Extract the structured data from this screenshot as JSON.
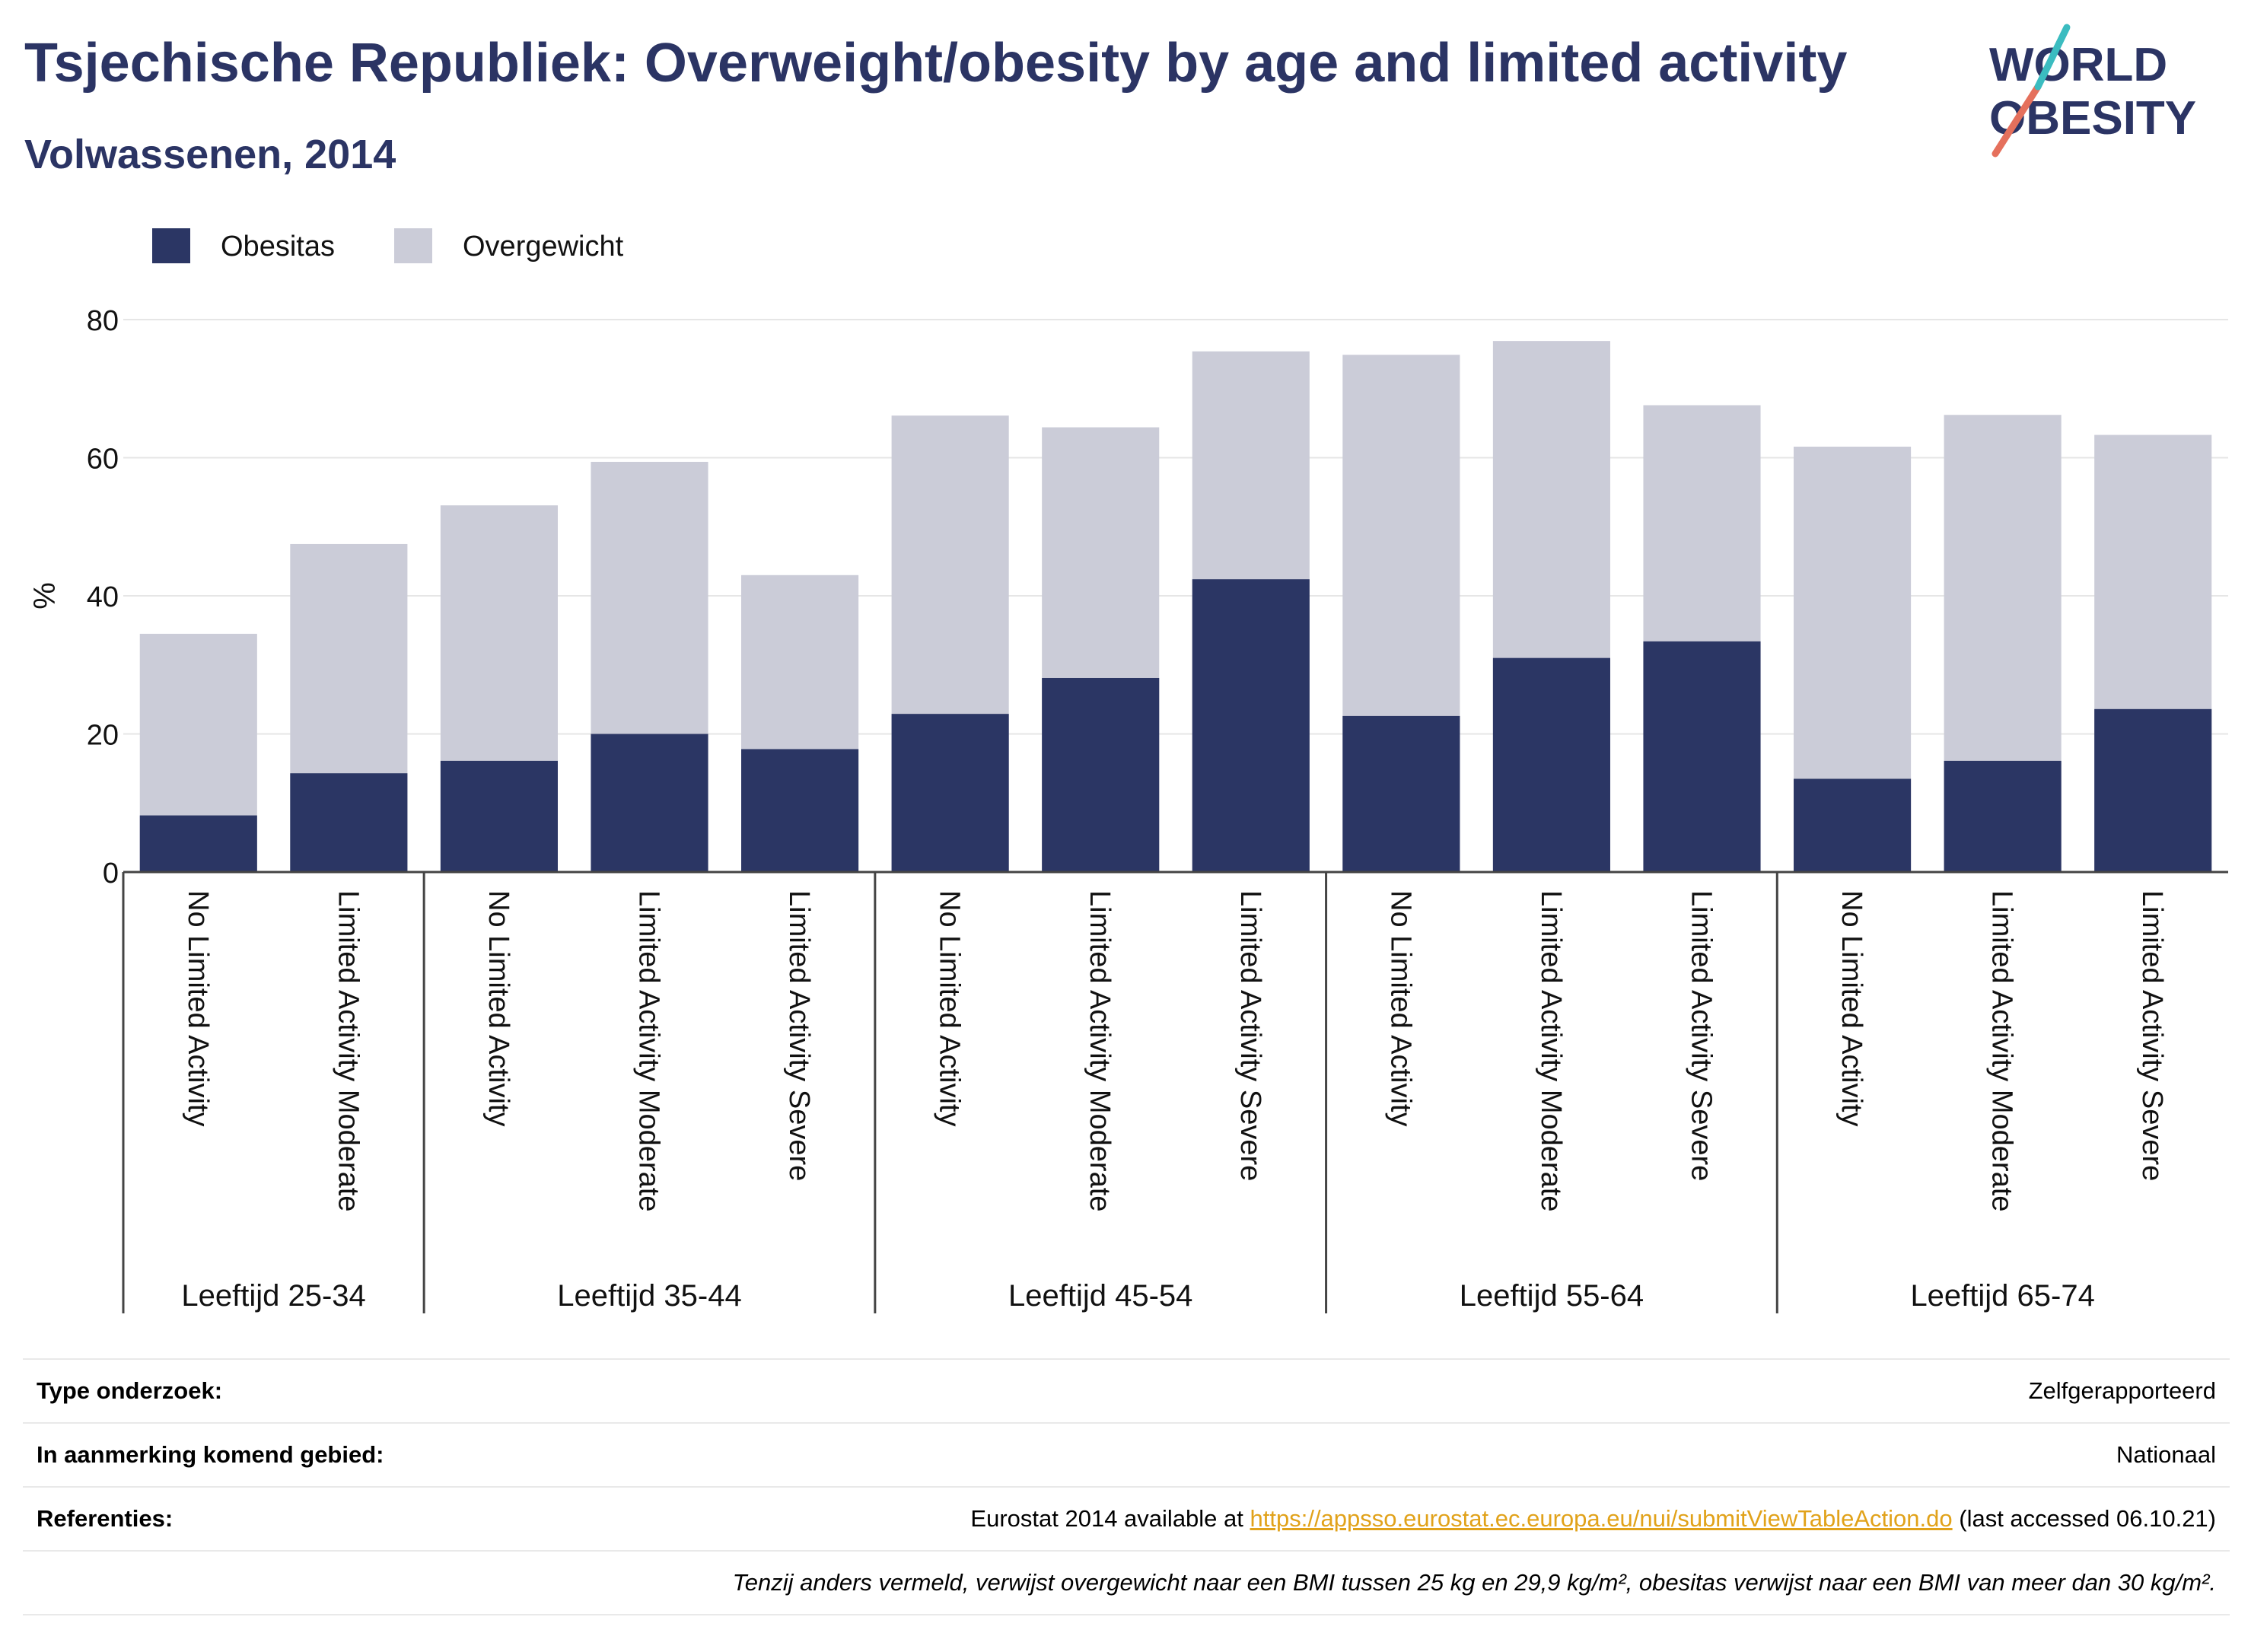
{
  "title": "Tsjechische Republiek: Overweight/obesity by age and limited activity",
  "subtitle": "Volwassenen, 2014",
  "logo": {
    "line1": "WORLD",
    "line2": "OBESITY"
  },
  "colors": {
    "obesitas": "#2b3664",
    "overgewicht": "#cbccd8",
    "title": "#2b3464"
  },
  "chart_data": {
    "type": "bar",
    "stacked": "overlay",
    "ylabel": "%",
    "ylim": [
      0,
      80
    ],
    "yticks": [
      0,
      20,
      40,
      60,
      80
    ],
    "grid": true,
    "legend_position": "top-left",
    "groups": [
      {
        "label": "Leeftijd 25-34",
        "categories": [
          "No Limited Activity",
          "Limited Activity Moderate"
        ]
      },
      {
        "label": "Leeftijd 35-44",
        "categories": [
          "No Limited Activity",
          "Limited Activity Moderate",
          "Limited Activity Severe"
        ]
      },
      {
        "label": "Leeftijd 45-54",
        "categories": [
          "No Limited Activity",
          "Limited Activity Moderate",
          "Limited Activity Severe"
        ]
      },
      {
        "label": "Leeftijd 55-64",
        "categories": [
          "No Limited Activity",
          "Limited Activity Moderate",
          "Limited Activity Severe"
        ]
      },
      {
        "label": "Leeftijd 65-74",
        "categories": [
          "No Limited Activity",
          "Limited Activity Moderate",
          "Limited Activity Severe"
        ]
      }
    ],
    "series": [
      {
        "name": "Obesitas",
        "values": [
          8.2,
          14.3,
          16.1,
          20.0,
          17.8,
          22.9,
          28.1,
          42.4,
          22.6,
          31.0,
          33.4,
          13.5,
          16.1,
          23.6
        ]
      },
      {
        "name": "Overgewicht",
        "values": [
          34.5,
          47.5,
          53.1,
          59.4,
          43.0,
          66.1,
          64.4,
          75.4,
          74.9,
          76.9,
          67.6,
          61.6,
          66.2,
          63.3
        ]
      }
    ]
  },
  "info": {
    "type_label": "Type onderzoek:",
    "type_value": "Zelfgerapporteerd",
    "area_label": "In aanmerking komend gebied:",
    "area_value": "Nationaal",
    "ref_label": "Referenties:",
    "ref_prefix": "Eurostat 2014 available at ",
    "ref_link": "https://appsso.eurostat.ec.europa.eu/nui/submitViewTableAction.do",
    "ref_suffix": " (last accessed 06.10.21)",
    "note": "Tenzij anders vermeld, verwijst overgewicht naar een BMI tussen 25 kg en 29,9 kg/m², obesitas verwijst naar een BMI van meer dan 30 kg/m²."
  }
}
